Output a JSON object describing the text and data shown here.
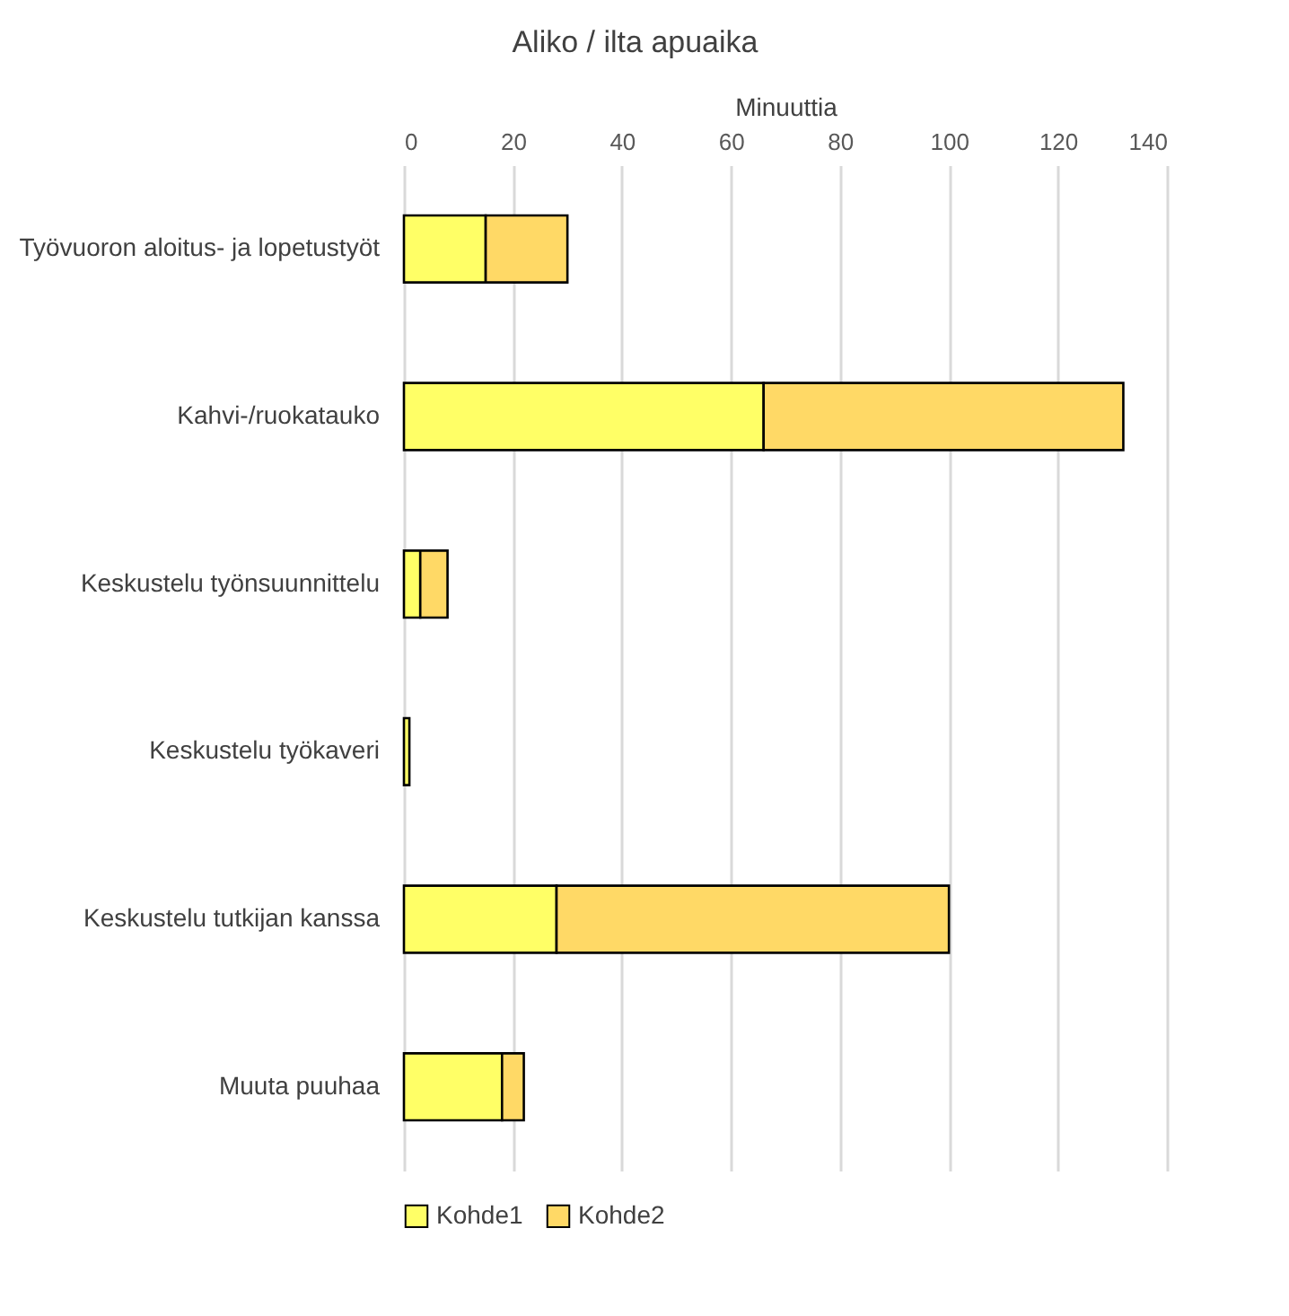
{
  "chart_data": {
    "type": "bar",
    "orientation": "horizontal",
    "stacked": true,
    "title": "Aliko / ilta apuaika",
    "xlabel": "Minuuttia",
    "categories": [
      "Työvuoron aloitus- ja lopetustyöt",
      "Kahvi-/ruokatauko",
      "Keskustelu työnsuunnittelu",
      "Keskustelu työkaveri",
      "Keskustelu tutkijan kanssa",
      "Muuta puuhaa"
    ],
    "series": [
      {
        "name": "Kohde1",
        "color": "#ffff66",
        "values": [
          15,
          66,
          3,
          1,
          28,
          18
        ]
      },
      {
        "name": "Kohde2",
        "color": "#ffd966",
        "values": [
          15,
          66,
          5,
          null,
          72,
          4
        ]
      }
    ],
    "xlim": [
      0,
      140
    ],
    "xticks": [
      0,
      20,
      40,
      60,
      80,
      100,
      120,
      140
    ],
    "grid": "x",
    "legend": "bottom"
  }
}
